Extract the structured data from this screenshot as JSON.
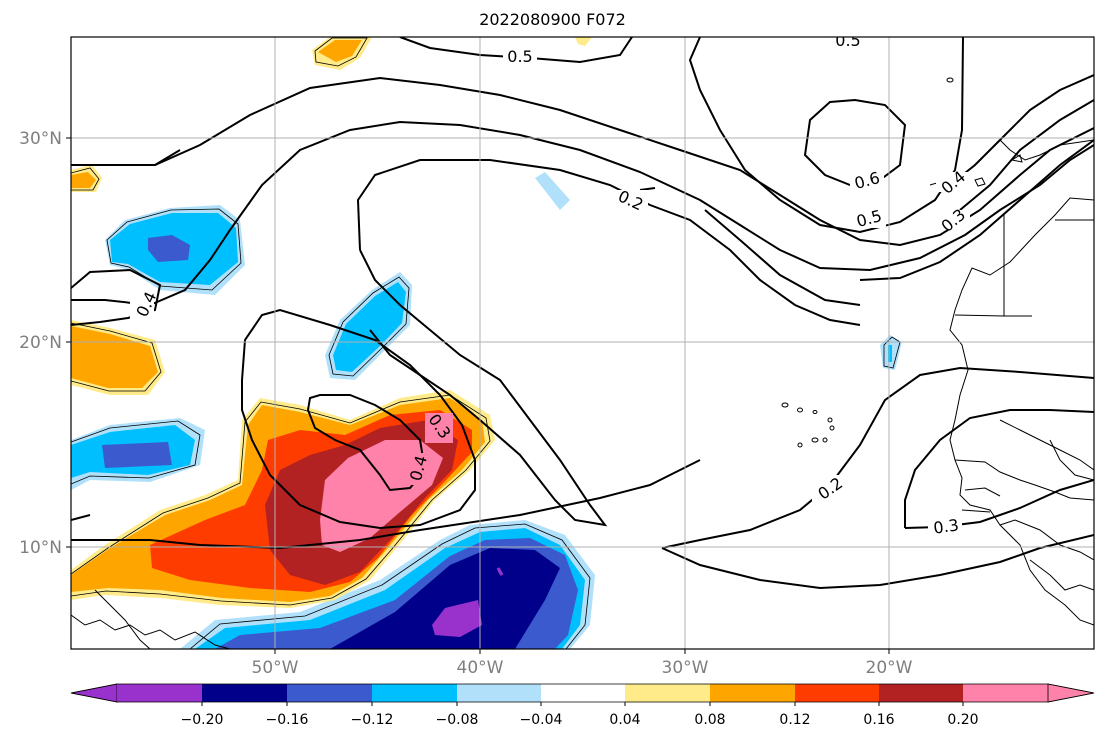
{
  "title": "2022080900 F072",
  "map": {
    "lat_labels": [
      "30°N",
      "20°N",
      "10°N"
    ],
    "lon_labels": [
      "50°W",
      "40°W",
      "30°W",
      "20°W"
    ],
    "contour_labels": [
      "0.5",
      "0.5",
      "0.6",
      "0.5",
      "0.4",
      "0.3",
      "0.2",
      "0.4",
      "0.3",
      "0.4",
      "0.2",
      "0.3"
    ]
  },
  "colorbar": {
    "ticks": [
      "−0.20",
      "−0.16",
      "−0.12",
      "−0.08",
      "−0.04",
      "0.04",
      "0.08",
      "0.12",
      "0.16",
      "0.20"
    ],
    "colors": {
      "purple": "#9932cc",
      "navy": "#00008b",
      "royal_blue": "#3a5acd",
      "deep_sky_blue": "#00bfff",
      "light_sky_blue": "#b0e0fa",
      "white": "#ffffff",
      "khaki": "#ffeb8a",
      "orange": "#ffa500",
      "orange_red": "#ff3c00",
      "firebrick": "#b22222",
      "pink": "#ff82aa"
    }
  }
}
